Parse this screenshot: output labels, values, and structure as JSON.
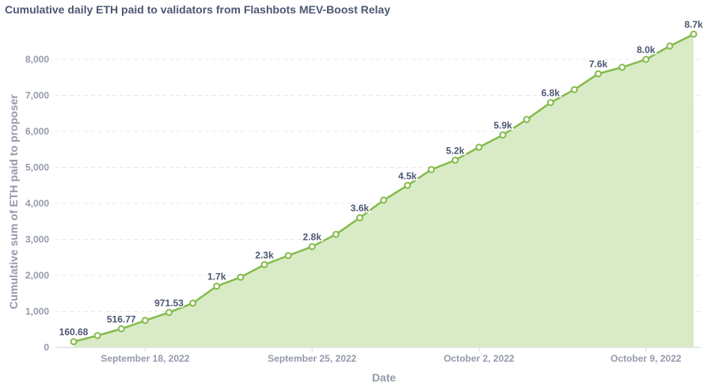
{
  "chart_data": {
    "type": "area",
    "title": "Cumulative daily ETH paid to validators from Flashbots MEV-Boost Relay",
    "xlabel": "Date",
    "ylabel": "Cumulative sum of ETH paid to proposer",
    "ylim": [
      0,
      8700
    ],
    "yticks": [
      0,
      1000,
      2000,
      3000,
      4000,
      5000,
      6000,
      7000,
      8000
    ],
    "ytick_labels": [
      "0",
      "1,000",
      "2,000",
      "3,000",
      "4,000",
      "5,000",
      "6,000",
      "7,000",
      "8,000"
    ],
    "xticks": [
      "2022-09-18",
      "2022-09-25",
      "2022-10-02",
      "2022-10-09"
    ],
    "xtick_labels": [
      "September 18, 2022",
      "September 25, 2022",
      "October 2, 2022",
      "October 9, 2022"
    ],
    "x_start": "2022-09-15",
    "x": [
      "2022-09-15",
      "2022-09-16",
      "2022-09-17",
      "2022-09-18",
      "2022-09-19",
      "2022-09-20",
      "2022-09-21",
      "2022-09-22",
      "2022-09-23",
      "2022-09-24",
      "2022-09-25",
      "2022-09-26",
      "2022-09-27",
      "2022-09-28",
      "2022-09-29",
      "2022-09-30",
      "2022-10-01",
      "2022-10-02",
      "2022-10-03",
      "2022-10-04",
      "2022-10-05",
      "2022-10-06",
      "2022-10-07",
      "2022-10-08",
      "2022-10-09",
      "2022-10-10",
      "2022-10-11"
    ],
    "values": [
      160.68,
      330,
      516.77,
      750,
      971.53,
      1230,
      1700,
      1950,
      2300,
      2550,
      2800,
      3140,
      3600,
      4090,
      4500,
      4940,
      5200,
      5560,
      5900,
      6330,
      6800,
      7160,
      7600,
      7780,
      8000,
      8370,
      8700
    ],
    "data_labels": [
      "160.68",
      "",
      "516.77",
      "",
      "971.53",
      "",
      "1.7k",
      "",
      "2.3k",
      "",
      "2.8k",
      "",
      "3.6k",
      "",
      "4.5k",
      "",
      "5.2k",
      "",
      "5.9k",
      "",
      "6.8k",
      "",
      "7.6k",
      "",
      "8.0k",
      "",
      "8.7k"
    ],
    "grid": true,
    "colors": {
      "line": "#84bb4c",
      "fill": "#d9ebc6",
      "label": "#4c5773",
      "axis": "#949aab"
    }
  }
}
